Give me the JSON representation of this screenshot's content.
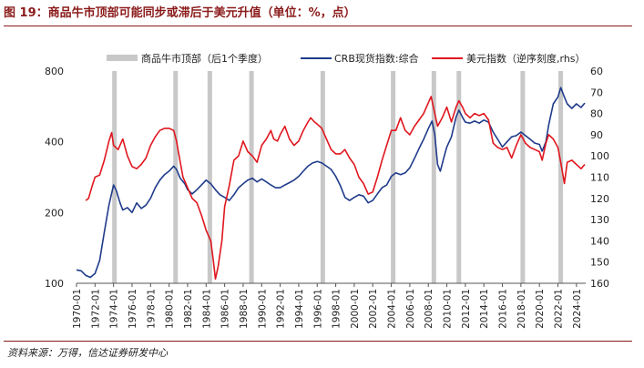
{
  "figure": {
    "title": "图 19：商品牛市顶部可能同步或滞后于美元升值（单位：%，点）",
    "source": "资料来源：万得，信达证券研发中心"
  },
  "chart_data": {
    "type": "line",
    "legend": [
      {
        "key": "bars",
        "label": "商品牛市顶部（后1个季度）",
        "color": "#c8c8c8"
      },
      {
        "key": "crb",
        "label": "CRB现货指数:综合",
        "color": "#1f3b8a"
      },
      {
        "key": "usd",
        "label": "美元指数（逆序刻度,rhs）",
        "color": "#e0161e"
      }
    ],
    "legend_position": "top",
    "x_ticks": [
      "1970-01",
      "1972-01",
      "1974-01",
      "1976-01",
      "1978-01",
      "1980-01",
      "1982-01",
      "1984-01",
      "1986-01",
      "1988-01",
      "1990-01",
      "1992-01",
      "1994-01",
      "1996-01",
      "1998-01",
      "2000-01",
      "2002-01",
      "2004-01",
      "2006-01",
      "2008-01",
      "2010-01",
      "2012-01",
      "2014-01",
      "2016-01",
      "2018-01",
      "2020-01",
      "2022-01",
      "2024-01"
    ],
    "x_range": [
      1970.0,
      2025.0
    ],
    "left_axis": {
      "scale": "log",
      "ticks": [
        100,
        200,
        400,
        800
      ],
      "range": [
        100,
        800
      ]
    },
    "right_axis": {
      "scale": "linear",
      "inverted": true,
      "ticks": [
        60,
        70,
        80,
        90,
        100,
        110,
        120,
        130,
        140,
        150,
        160
      ],
      "range": [
        60,
        160
      ]
    },
    "peak_bars": [
      1974.1,
      1980.7,
      1984.4,
      1988.9,
      1996.6,
      2004.2,
      2008.6,
      2011.3,
      2018.2,
      2022.3
    ],
    "series": [
      {
        "name": "CRB现货指数:综合",
        "axis": "left",
        "color": "#1f3b8a",
        "points": [
          [
            1970.0,
            114
          ],
          [
            1970.5,
            113
          ],
          [
            1971.0,
            108
          ],
          [
            1971.5,
            106
          ],
          [
            1972.0,
            110
          ],
          [
            1972.5,
            125
          ],
          [
            1973.0,
            165
          ],
          [
            1973.5,
            215
          ],
          [
            1974.0,
            262
          ],
          [
            1974.3,
            248
          ],
          [
            1974.7,
            220
          ],
          [
            1975.0,
            205
          ],
          [
            1975.5,
            210
          ],
          [
            1976.0,
            200
          ],
          [
            1976.5,
            220
          ],
          [
            1977.0,
            208
          ],
          [
            1977.5,
            215
          ],
          [
            1978.0,
            230
          ],
          [
            1978.5,
            255
          ],
          [
            1979.0,
            275
          ],
          [
            1979.5,
            290
          ],
          [
            1980.0,
            300
          ],
          [
            1980.5,
            315
          ],
          [
            1980.8,
            305
          ],
          [
            1981.2,
            280
          ],
          [
            1981.7,
            265
          ],
          [
            1982.0,
            250
          ],
          [
            1982.5,
            240
          ],
          [
            1983.0,
            250
          ],
          [
            1983.5,
            262
          ],
          [
            1984.0,
            275
          ],
          [
            1984.5,
            265
          ],
          [
            1985.0,
            250
          ],
          [
            1985.5,
            238
          ],
          [
            1986.0,
            232
          ],
          [
            1986.5,
            225
          ],
          [
            1987.0,
            238
          ],
          [
            1987.5,
            255
          ],
          [
            1988.0,
            265
          ],
          [
            1988.5,
            275
          ],
          [
            1989.0,
            280
          ],
          [
            1989.5,
            270
          ],
          [
            1990.0,
            278
          ],
          [
            1990.5,
            270
          ],
          [
            1991.0,
            262
          ],
          [
            1991.5,
            255
          ],
          [
            1992.0,
            255
          ],
          [
            1992.5,
            262
          ],
          [
            1993.0,
            268
          ],
          [
            1993.5,
            275
          ],
          [
            1994.0,
            285
          ],
          [
            1994.5,
            300
          ],
          [
            1995.0,
            315
          ],
          [
            1995.5,
            325
          ],
          [
            1996.0,
            330
          ],
          [
            1996.5,
            325
          ],
          [
            1997.0,
            315
          ],
          [
            1997.5,
            305
          ],
          [
            1998.0,
            285
          ],
          [
            1998.5,
            260
          ],
          [
            1999.0,
            232
          ],
          [
            1999.5,
            225
          ],
          [
            2000.0,
            232
          ],
          [
            2000.5,
            238
          ],
          [
            2001.0,
            235
          ],
          [
            2001.5,
            220
          ],
          [
            2002.0,
            225
          ],
          [
            2002.5,
            240
          ],
          [
            2003.0,
            255
          ],
          [
            2003.5,
            262
          ],
          [
            2004.0,
            285
          ],
          [
            2004.5,
            295
          ],
          [
            2005.0,
            290
          ],
          [
            2005.5,
            295
          ],
          [
            2006.0,
            310
          ],
          [
            2006.5,
            340
          ],
          [
            2007.0,
            375
          ],
          [
            2007.5,
            410
          ],
          [
            2008.0,
            455
          ],
          [
            2008.4,
            490
          ],
          [
            2008.7,
            430
          ],
          [
            2009.0,
            320
          ],
          [
            2009.3,
            300
          ],
          [
            2009.7,
            345
          ],
          [
            2010.0,
            380
          ],
          [
            2010.5,
            420
          ],
          [
            2011.0,
            510
          ],
          [
            2011.3,
            545
          ],
          [
            2011.8,
            500
          ],
          [
            2012.0,
            485
          ],
          [
            2012.5,
            480
          ],
          [
            2013.0,
            490
          ],
          [
            2013.5,
            480
          ],
          [
            2014.0,
            495
          ],
          [
            2014.5,
            485
          ],
          [
            2015.0,
            440
          ],
          [
            2015.5,
            410
          ],
          [
            2016.0,
            380
          ],
          [
            2016.5,
            400
          ],
          [
            2017.0,
            420
          ],
          [
            2017.5,
            425
          ],
          [
            2018.0,
            440
          ],
          [
            2018.5,
            425
          ],
          [
            2019.0,
            410
          ],
          [
            2019.5,
            395
          ],
          [
            2020.0,
            390
          ],
          [
            2020.3,
            365
          ],
          [
            2020.7,
            400
          ],
          [
            2021.0,
            470
          ],
          [
            2021.5,
            580
          ],
          [
            2022.0,
            620
          ],
          [
            2022.3,
            680
          ],
          [
            2022.7,
            620
          ],
          [
            2023.0,
            580
          ],
          [
            2023.5,
            555
          ],
          [
            2024.0,
            580
          ],
          [
            2024.5,
            560
          ],
          [
            2024.9,
            585
          ]
        ]
      },
      {
        "name": "美元指数（逆序刻度,rhs）",
        "axis": "right",
        "color": "#e0161e",
        "points": [
          [
            1971.0,
            121
          ],
          [
            1971.3,
            120
          ],
          [
            1971.7,
            114
          ],
          [
            1972.0,
            110
          ],
          [
            1972.5,
            109
          ],
          [
            1973.0,
            102
          ],
          [
            1973.5,
            93
          ],
          [
            1973.8,
            89
          ],
          [
            1974.0,
            95
          ],
          [
            1974.5,
            97
          ],
          [
            1975.0,
            92
          ],
          [
            1975.5,
            100
          ],
          [
            1976.0,
            105
          ],
          [
            1976.5,
            106
          ],
          [
            1977.0,
            104
          ],
          [
            1977.5,
            101
          ],
          [
            1978.0,
            95
          ],
          [
            1978.5,
            91
          ],
          [
            1979.0,
            88
          ],
          [
            1979.5,
            87
          ],
          [
            1980.0,
            87
          ],
          [
            1980.5,
            88
          ],
          [
            1980.8,
            93
          ],
          [
            1981.0,
            98
          ],
          [
            1981.5,
            110
          ],
          [
            1982.0,
            115
          ],
          [
            1982.5,
            120
          ],
          [
            1983.0,
            122
          ],
          [
            1983.5,
            128
          ],
          [
            1984.0,
            135
          ],
          [
            1984.5,
            140
          ],
          [
            1984.8,
            150
          ],
          [
            1985.0,
            158
          ],
          [
            1985.3,
            152
          ],
          [
            1985.7,
            140
          ],
          [
            1986.0,
            124
          ],
          [
            1986.5,
            114
          ],
          [
            1987.0,
            102
          ],
          [
            1987.5,
            100
          ],
          [
            1988.0,
            93
          ],
          [
            1988.5,
            98
          ],
          [
            1989.0,
            100
          ],
          [
            1989.5,
            103
          ],
          [
            1990.0,
            95
          ],
          [
            1990.5,
            92
          ],
          [
            1991.0,
            88
          ],
          [
            1991.3,
            92
          ],
          [
            1991.7,
            93
          ],
          [
            1992.0,
            90
          ],
          [
            1992.5,
            86
          ],
          [
            1993.0,
            92
          ],
          [
            1993.5,
            95
          ],
          [
            1994.0,
            93
          ],
          [
            1994.5,
            88
          ],
          [
            1995.0,
            84
          ],
          [
            1995.3,
            82
          ],
          [
            1995.7,
            84
          ],
          [
            1996.0,
            85
          ],
          [
            1996.5,
            87
          ],
          [
            1997.0,
            92
          ],
          [
            1997.5,
            97
          ],
          [
            1998.0,
            99
          ],
          [
            1998.5,
            99
          ],
          [
            1999.0,
            97
          ],
          [
            1999.5,
            101
          ],
          [
            2000.0,
            104
          ],
          [
            2000.5,
            110
          ],
          [
            2001.0,
            113
          ],
          [
            2001.5,
            118
          ],
          [
            2002.0,
            117
          ],
          [
            2002.5,
            110
          ],
          [
            2003.0,
            102
          ],
          [
            2003.5,
            95
          ],
          [
            2004.0,
            88
          ],
          [
            2004.5,
            88
          ],
          [
            2005.0,
            82
          ],
          [
            2005.5,
            88
          ],
          [
            2006.0,
            90
          ],
          [
            2006.5,
            86
          ],
          [
            2007.0,
            83
          ],
          [
            2007.5,
            80
          ],
          [
            2008.0,
            75
          ],
          [
            2008.3,
            72
          ],
          [
            2008.7,
            80
          ],
          [
            2009.0,
            86
          ],
          [
            2009.5,
            82
          ],
          [
            2010.0,
            77
          ],
          [
            2010.5,
            84
          ],
          [
            2011.0,
            77
          ],
          [
            2011.3,
            74
          ],
          [
            2011.7,
            77
          ],
          [
            2012.0,
            80
          ],
          [
            2012.5,
            82
          ],
          [
            2013.0,
            80
          ],
          [
            2013.5,
            81
          ],
          [
            2014.0,
            80
          ],
          [
            2014.5,
            83
          ],
          [
            2015.0,
            94
          ],
          [
            2015.5,
            96
          ],
          [
            2016.0,
            97
          ],
          [
            2016.5,
            96
          ],
          [
            2017.0,
            101
          ],
          [
            2017.5,
            95
          ],
          [
            2018.0,
            90
          ],
          [
            2018.5,
            94
          ],
          [
            2019.0,
            96
          ],
          [
            2019.5,
            97
          ],
          [
            2020.0,
            98
          ],
          [
            2020.3,
            102
          ],
          [
            2020.7,
            94
          ],
          [
            2021.0,
            90
          ],
          [
            2021.5,
            92
          ],
          [
            2022.0,
            96
          ],
          [
            2022.3,
            103
          ],
          [
            2022.7,
            113
          ],
          [
            2023.0,
            103
          ],
          [
            2023.5,
            102
          ],
          [
            2024.0,
            104
          ],
          [
            2024.5,
            106
          ],
          [
            2024.9,
            104
          ]
        ]
      }
    ]
  }
}
